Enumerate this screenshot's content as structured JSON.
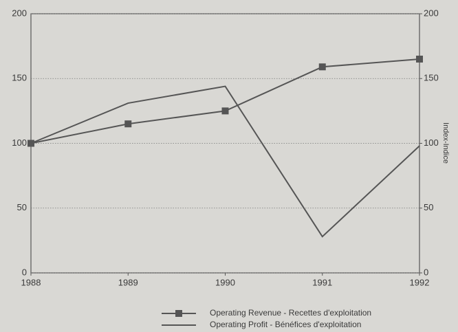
{
  "chart_data": {
    "type": "line",
    "categories": [
      "1988",
      "1989",
      "1990",
      "1991",
      "1992"
    ],
    "series": [
      {
        "name": "Operating Revenue - Recettes d'exploitation",
        "color": "#555555",
        "marker": "square",
        "values": [
          100,
          115,
          125,
          159,
          165
        ]
      },
      {
        "name": "Operating Profit - Bénéfices d'exploitation",
        "color": "#555555",
        "values": [
          100,
          131,
          144,
          28,
          98
        ]
      }
    ],
    "ylim": [
      0,
      200
    ],
    "yticks": [
      0,
      50,
      100,
      150,
      200
    ],
    "y2lim": [
      0,
      200
    ],
    "y2ticks": [
      0,
      50,
      100,
      150,
      200
    ],
    "y2label": "Index-Indice",
    "grid": true,
    "legend": "bottom"
  }
}
